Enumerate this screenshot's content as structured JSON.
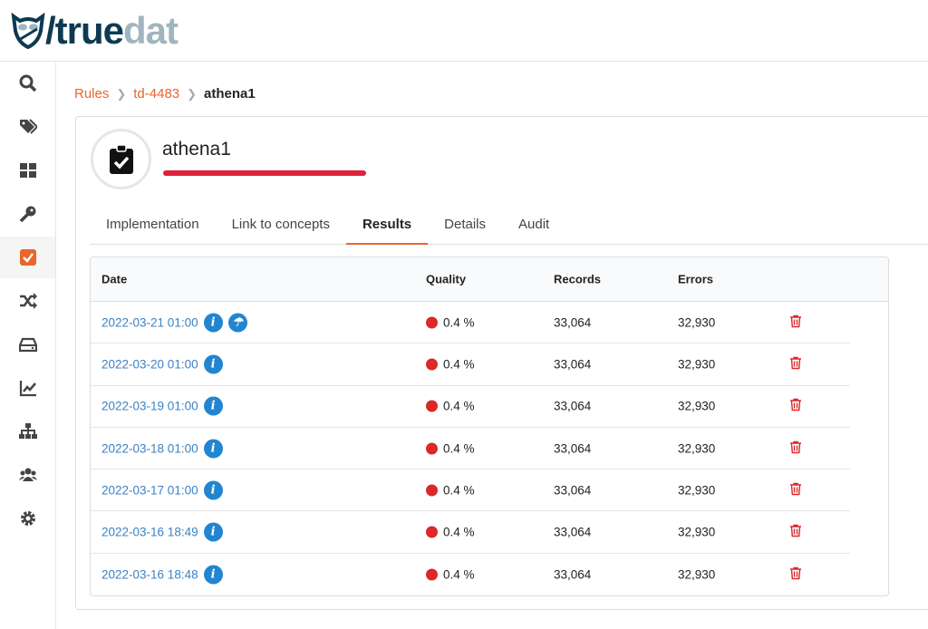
{
  "brand": {
    "part1": "/true",
    "part2": "dat"
  },
  "sidebar": {
    "items": [
      {
        "icon": "search-icon"
      },
      {
        "icon": "tags-icon"
      },
      {
        "icon": "dashboard-icon"
      },
      {
        "icon": "key-icon"
      },
      {
        "icon": "check-square-icon",
        "active": true
      },
      {
        "icon": "shuffle-icon"
      },
      {
        "icon": "hdd-icon"
      },
      {
        "icon": "chart-line-icon"
      },
      {
        "icon": "sitemap-icon"
      },
      {
        "icon": "users-icon"
      },
      {
        "icon": "gear-icon"
      }
    ]
  },
  "breadcrumb": [
    {
      "label": "Rules"
    },
    {
      "label": "td-4483"
    },
    {
      "label": "athena1"
    }
  ],
  "rule": {
    "title": "athena1"
  },
  "tabs": [
    {
      "label": "Implementation"
    },
    {
      "label": "Link to concepts"
    },
    {
      "label": "Results",
      "active": true
    },
    {
      "label": "Details"
    },
    {
      "label": "Audit"
    }
  ],
  "table": {
    "headers": [
      "Date",
      "Quality",
      "Records",
      "Errors"
    ],
    "rows": [
      {
        "date": "2022-03-21 01:00",
        "quality": "0.4 %",
        "records": "33,064",
        "errors": "32,930",
        "extra_icon": true
      },
      {
        "date": "2022-03-20 01:00",
        "quality": "0.4 %",
        "records": "33,064",
        "errors": "32,930"
      },
      {
        "date": "2022-03-19 01:00",
        "quality": "0.4 %",
        "records": "33,064",
        "errors": "32,930"
      },
      {
        "date": "2022-03-18 01:00",
        "quality": "0.4 %",
        "records": "33,064",
        "errors": "32,930"
      },
      {
        "date": "2022-03-17 01:00",
        "quality": "0.4 %",
        "records": "33,064",
        "errors": "32,930"
      },
      {
        "date": "2022-03-16 18:49",
        "quality": "0.4 %",
        "records": "33,064",
        "errors": "32,930"
      },
      {
        "date": "2022-03-16 18:48",
        "quality": "0.4 %",
        "records": "33,064",
        "errors": "32,930"
      }
    ]
  },
  "colors": {
    "accent": "#e8652b",
    "danger": "#db2828",
    "link": "#3b82c4",
    "info": "#2185d0"
  }
}
